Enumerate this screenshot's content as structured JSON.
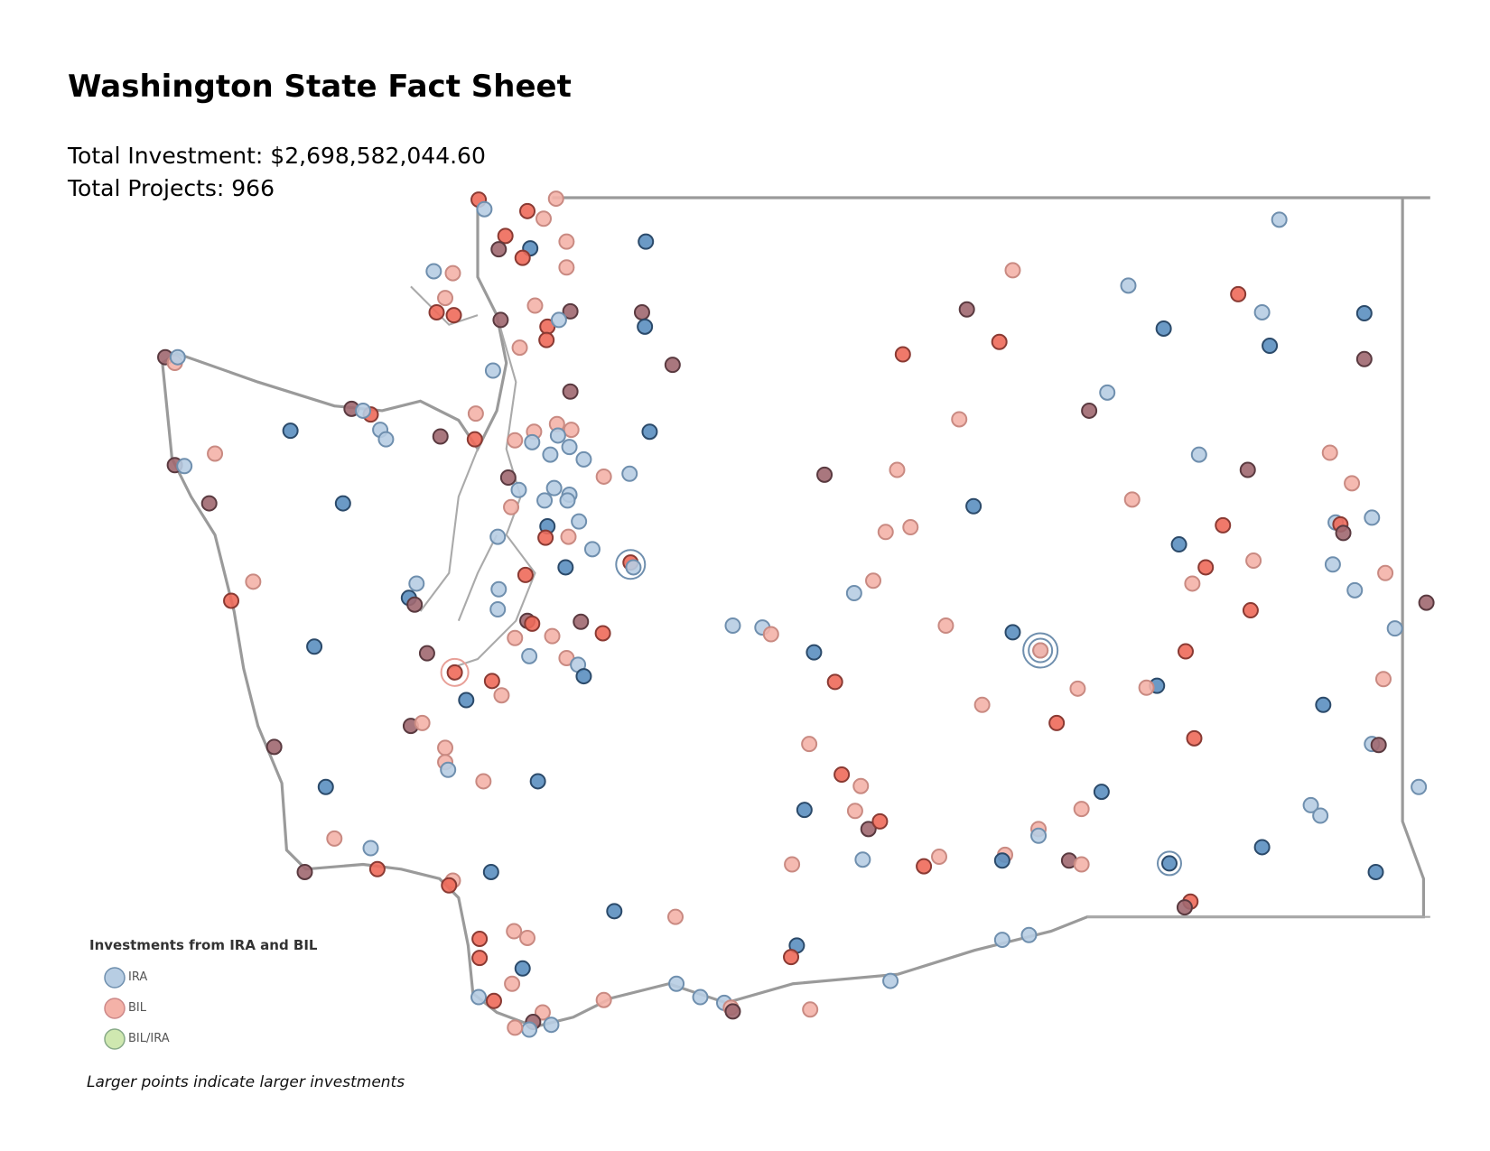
{
  "header": {
    "title": "Washington State Fact Sheet",
    "total_investment": "Total Investment: $2,698,582,044.60",
    "total_projects": "Total Projects: 966"
  },
  "legend": {
    "title": "Investments from IRA and BIL",
    "items": [
      "IRA",
      "BIL",
      "BIL/IRA"
    ],
    "note": "Larger points indicate larger investments"
  }
}
